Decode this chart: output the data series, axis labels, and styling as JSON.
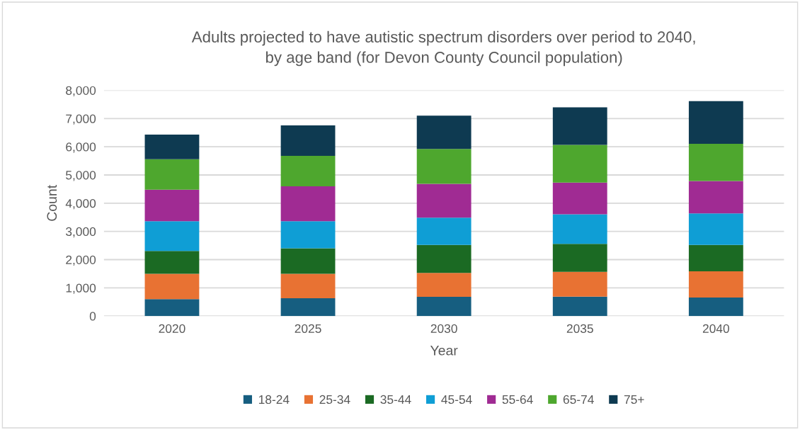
{
  "chart_data": {
    "type": "bar",
    "stacked": true,
    "title": "Adults projected to have autistic spectrum disorders over period to 2040,\nby age band (for Devon County Council population)",
    "xlabel": "Year",
    "ylabel": "Count",
    "categories": [
      "2020",
      "2025",
      "2030",
      "2035",
      "2040"
    ],
    "series": [
      {
        "name": "18-24",
        "color": "#165e80",
        "values": [
          600,
          630,
          680,
          690,
          655
        ]
      },
      {
        "name": "25-34",
        "color": "#e87233",
        "values": [
          900,
          865,
          850,
          875,
          930
        ]
      },
      {
        "name": "35-44",
        "color": "#1b6a23",
        "values": [
          810,
          905,
          990,
          990,
          935
        ]
      },
      {
        "name": "45-54",
        "color": "#0f9ed5",
        "values": [
          1050,
          960,
          965,
          1050,
          1120
        ]
      },
      {
        "name": "55-64",
        "color": "#a02b93",
        "values": [
          1120,
          1235,
          1200,
          1125,
          1145
        ]
      },
      {
        "name": "65-74",
        "color": "#4ea72e",
        "values": [
          1075,
          1085,
          1235,
          1335,
          1320
        ]
      },
      {
        "name": "75+",
        "color": "#0e3a51",
        "values": [
          875,
          1075,
          1180,
          1330,
          1510
        ]
      }
    ],
    "ylim": [
      0,
      8000
    ],
    "yticks": [
      {
        "value": 0,
        "label": "0"
      },
      {
        "value": 1000,
        "label": "1,000"
      },
      {
        "value": 2000,
        "label": "2,000"
      },
      {
        "value": 3000,
        "label": "3,000"
      },
      {
        "value": 4000,
        "label": "4,000"
      },
      {
        "value": 5000,
        "label": "5,000"
      },
      {
        "value": 6000,
        "label": "6,000"
      },
      {
        "value": 7000,
        "label": "7,000"
      },
      {
        "value": 8000,
        "label": "8,000"
      }
    ],
    "grid": "y",
    "legend": "bottom"
  }
}
